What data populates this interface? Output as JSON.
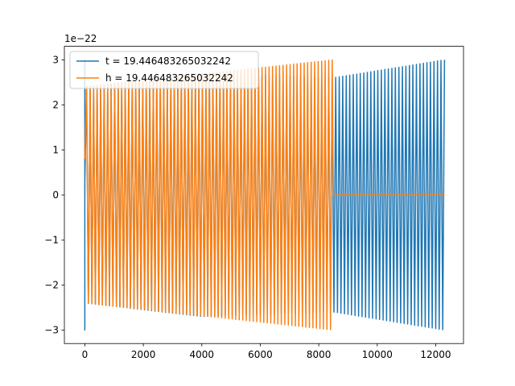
{
  "chart_data": {
    "type": "line",
    "title": "",
    "xlabel": "",
    "ylabel": "",
    "y_offset_label": "1e−22",
    "xlim": [
      -700,
      12950
    ],
    "ylim": [
      -3.3,
      3.3
    ],
    "x_ticks": [
      0,
      2000,
      4000,
      6000,
      8000,
      10000,
      12000
    ],
    "x_tick_labels": [
      "0",
      "2000",
      "4000",
      "6000",
      "8000",
      "10000",
      "12000"
    ],
    "y_ticks": [
      -3,
      -2,
      -1,
      0,
      1,
      2,
      3
    ],
    "y_tick_labels": [
      "−3",
      "−2",
      "−1",
      "0",
      "1",
      "2",
      "3"
    ],
    "grid": false,
    "legend_position": "top-left",
    "series": [
      {
        "name": "t = 19.446483265032242",
        "color": "#1f77b4",
        "x_start": 0,
        "x_end": 12300,
        "oscillating_envelope": {
          "x": [
            0,
            4000,
            8500,
            12300
          ],
          "upper": [
            2.4,
            2.7,
            2.6,
            3.0
          ],
          "lower": [
            -2.4,
            -2.7,
            -2.6,
            -3.0
          ]
        },
        "initial_spike": {
          "x": 0,
          "y_max": 3.0,
          "y_min": -3.0
        }
      },
      {
        "name": "h = 19.446483265032242",
        "color": "#ff7f0e",
        "x_start": 0,
        "x_end": 12300,
        "oscillating_envelope": {
          "x": [
            0,
            8500
          ],
          "upper": [
            2.4,
            3.0
          ],
          "lower": [
            -2.4,
            -3.0
          ]
        },
        "flat_after": {
          "x_from": 8500,
          "x_to": 12300,
          "y": 0
        }
      }
    ]
  }
}
